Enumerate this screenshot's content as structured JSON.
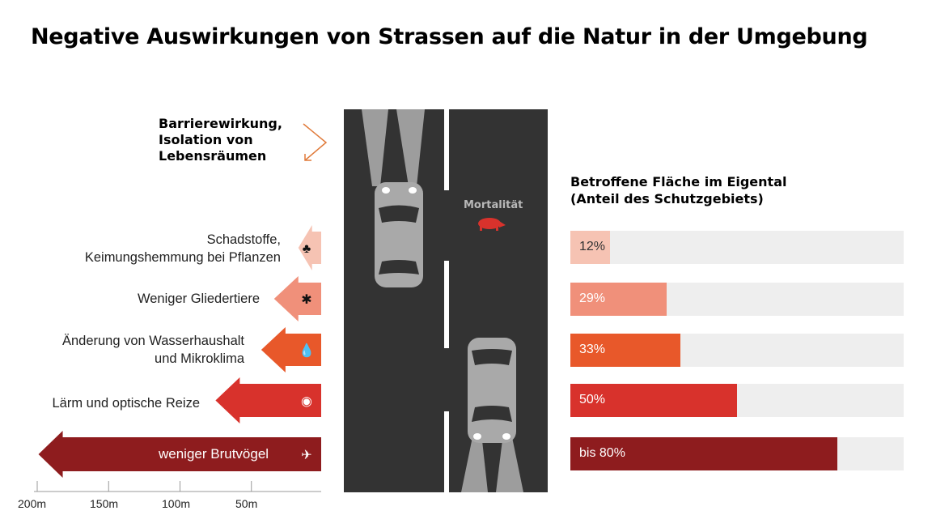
{
  "title": "Negative Auswirkungen von Strassen auf die Natur in der Umgebung",
  "barrier": {
    "lines": [
      "Barrierewirkung,",
      "Isolation von",
      "Lebensräumen"
    ],
    "icon": "zigzag-arrow-icon",
    "color": "#e07a3a"
  },
  "road": {
    "mortality_label": "Mortalität",
    "mortality_icon": "animal-icon",
    "mortality_color": "#d8322c"
  },
  "effects": [
    {
      "lines": [
        "Schadstoffe,",
        "Keimungshemmung bei Pflanzen"
      ],
      "icon": "plant-icon",
      "distance_m": 16,
      "color": "#f6c3b3"
    },
    {
      "lines": [
        "Weniger Gliedertiere"
      ],
      "icon": "bug-icon",
      "distance_m": 33,
      "color": "#f0907a"
    },
    {
      "lines": [
        "Änderung von Wasserhaushalt",
        "und Mikroklima"
      ],
      "icon": "water-drop-icon",
      "distance_m": 42,
      "color": "#e8582a"
    },
    {
      "lines": [
        "Lärm und optische Reize"
      ],
      "icon": "sound-eye-icon",
      "distance_m": 74,
      "color": "#d8322c"
    },
    {
      "lines": [
        "weniger Brutvögel"
      ],
      "icon": "bird-icon",
      "distance_m": 198,
      "color": "#8e1c1e"
    }
  ],
  "scale": {
    "ticks": [
      "200m",
      "150m",
      "100m",
      "50m"
    ]
  },
  "area_chart": {
    "title_lines": [
      "Betroffene Fläche im Eigental",
      "(Anteil des Schutzgebiets)"
    ],
    "bars": [
      {
        "label": "12%",
        "value": 12,
        "color": "#f6c3b3"
      },
      {
        "label": "29%",
        "value": 29,
        "color": "#f0907a"
      },
      {
        "label": "33%",
        "value": 33,
        "color": "#e8582a"
      },
      {
        "label": "50%",
        "value": 50,
        "color": "#d8322c"
      },
      {
        "label": "bis 80%",
        "value": 80,
        "color": "#8e1c1e"
      }
    ]
  }
}
